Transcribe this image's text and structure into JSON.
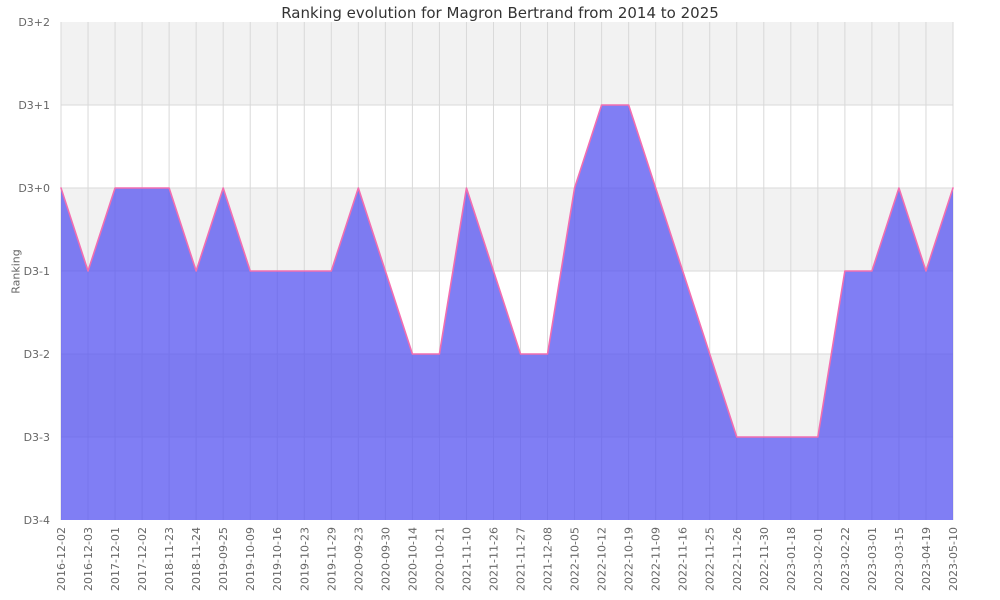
{
  "chart_data": {
    "type": "area",
    "title": "Ranking evolution for Magron Bertrand from 2014 to 2025",
    "xlabel": "",
    "ylabel": "Ranking",
    "legend": false,
    "grid": true,
    "alternating_bands": true,
    "ylim": [
      -4,
      2
    ],
    "y_ticks": [
      {
        "value": 2,
        "label": "D3+2"
      },
      {
        "value": 1,
        "label": "D3+1"
      },
      {
        "value": 0,
        "label": "D3+0"
      },
      {
        "value": -1,
        "label": "D3-1"
      },
      {
        "value": -2,
        "label": "D3-2"
      },
      {
        "value": -3,
        "label": "D3-3"
      },
      {
        "value": -4,
        "label": "D3-4"
      }
    ],
    "categories": [
      "2016-12-02",
      "2016-12-03",
      "2017-12-01",
      "2017-12-02",
      "2018-11-23",
      "2018-11-24",
      "2019-09-25",
      "2019-10-09",
      "2019-10-16",
      "2019-10-23",
      "2019-11-29",
      "2020-09-23",
      "2020-09-30",
      "2020-10-14",
      "2020-10-21",
      "2021-11-10",
      "2021-11-26",
      "2021-11-27",
      "2021-12-08",
      "2022-10-05",
      "2022-10-12",
      "2022-10-19",
      "2022-11-09",
      "2022-11-16",
      "2022-11-25",
      "2022-11-26",
      "2022-11-30",
      "2023-01-18",
      "2023-02-01",
      "2023-02-22",
      "2023-03-01",
      "2023-03-15",
      "2023-04-19",
      "2023-05-10"
    ],
    "values": [
      0,
      -1,
      0,
      0,
      0,
      -1,
      0,
      -1,
      -1,
      -1,
      -1,
      0,
      -1,
      -2,
      -2,
      0,
      -1,
      -2,
      -2,
      0,
      1,
      1,
      0,
      -1,
      -2,
      -3,
      -3,
      -3,
      -3,
      -1,
      -1,
      0,
      -1,
      0
    ],
    "colors": {
      "area_fill": "#5553f0",
      "area_fill_opacity": 0.75,
      "line": "#f26eb0",
      "band_alt": "#f2f2f2",
      "band_base": "#ffffff",
      "gridline": "#d9d9d9",
      "tick_text": "#666666",
      "title_text": "#333333"
    }
  }
}
